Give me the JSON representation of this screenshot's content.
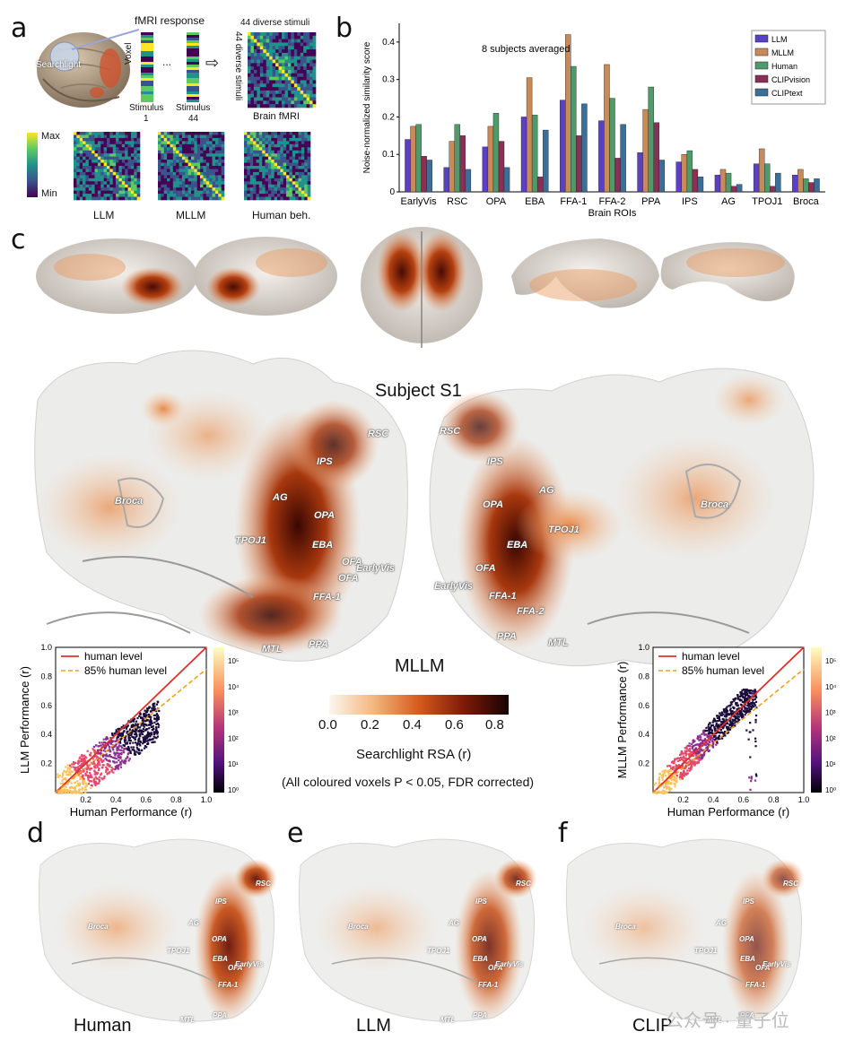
{
  "panels": {
    "a": {
      "letter": "a",
      "searchlight": "Searchlight",
      "fmri_response": "fMRI response",
      "voxel": "Voxel",
      "stimulus1_a": "Stimulus",
      "stimulus1_b": "1",
      "dots": "...",
      "stimulus44_a": "Stimulus",
      "stimulus44_b": "44",
      "arrow": "⇨",
      "diverse_top": "44 diverse stimuli",
      "diverse_side": "44 diverse stimuli",
      "brain_fmri": "Brain fMRI",
      "cbar_max": "Max",
      "cbar_min": "Min",
      "rdm_labels": [
        "LLM",
        "MLLM",
        "Human beh."
      ]
    },
    "b": {
      "letter": "b"
    },
    "c": {
      "letter": "c",
      "subject": "Subject S1",
      "model": "MLLM",
      "left_rois": [
        "RSC",
        "IPS",
        "AG",
        "Broca",
        "OPA",
        "TPOJ1",
        "EBA",
        "OFA",
        "EarlyVis",
        "OFA",
        "FFA-1",
        "PPA",
        "MTL"
      ],
      "right_rois": [
        "RSC",
        "IPS",
        "AG",
        "Broca",
        "OPA",
        "TPOJ1",
        "EBA",
        "OFA",
        "EarlyVis",
        "FFA-1",
        "FFA-2",
        "PPA",
        "MTL"
      ],
      "colorbar": {
        "ticks": [
          "0.0",
          "0.2",
          "0.4",
          "0.6",
          "0.8"
        ],
        "label": "Searchlight RSA (r)",
        "note": "(All coloured voxels P < 0.05, FDR corrected)"
      },
      "scatter_left": {
        "ylabel": "LLM Performance (r)",
        "xlabel": "Human Performance (r)",
        "legend": [
          "human level",
          "85% human level"
        ],
        "ticks": [
          "0.2",
          "0.4",
          "0.6",
          "0.8",
          "1.0"
        ],
        "yticks": [
          "0.2",
          "0.4",
          "0.6",
          "0.8",
          "1.0"
        ],
        "cticks": [
          "10⁵",
          "10⁴",
          "10³",
          "10²",
          "10¹",
          "10⁰"
        ]
      },
      "scatter_right": {
        "ylabel": "MLLM Performance (r)",
        "xlabel": "Human Performance (r)",
        "legend": [
          "human level",
          "85% human level"
        ],
        "ticks": [
          "0.2",
          "0.4",
          "0.6",
          "0.8",
          "1.0"
        ],
        "yticks": [
          "0.2",
          "0.4",
          "0.6",
          "0.8",
          "1.0"
        ],
        "cticks": [
          "10⁵",
          "10⁴",
          "10³",
          "10²",
          "10¹",
          "10⁰"
        ]
      }
    },
    "d": {
      "letter": "d",
      "label": "Human"
    },
    "e": {
      "letter": "e",
      "label": "LLM"
    },
    "f": {
      "letter": "f",
      "label": "CLIP"
    },
    "small_rois": [
      "RSC",
      "IPS",
      "AG",
      "Broca",
      "OPA",
      "TPOJ1",
      "EBA",
      "OFA",
      "EarlyVis",
      "FFA-1",
      "PPA",
      "MTL"
    ],
    "watermark": "公众号 · 量子位"
  },
  "chart_data": {
    "type": "bar",
    "title": "",
    "annotation": "8 subjects averaged",
    "xlabel": "Brain ROIs",
    "ylabel": "Noise-normalized similarity score",
    "ylim": [
      0,
      0.45
    ],
    "yticks": [
      "0",
      "0.1",
      "0.2",
      "0.3",
      "0.4"
    ],
    "categories": [
      "EarlyVis",
      "RSC",
      "OPA",
      "EBA",
      "FFA-1",
      "FFA-2",
      "PPA",
      "IPS",
      "AG",
      "TPOJ1",
      "Broca"
    ],
    "series": [
      {
        "name": "LLM",
        "color": "#5b3fc4",
        "values": [
          0.14,
          0.065,
          0.12,
          0.2,
          0.245,
          0.19,
          0.105,
          0.08,
          0.045,
          0.075,
          0.045
        ]
      },
      {
        "name": "MLLM",
        "color": "#c98a5a",
        "values": [
          0.175,
          0.135,
          0.175,
          0.305,
          0.42,
          0.34,
          0.22,
          0.1,
          0.06,
          0.115,
          0.06
        ]
      },
      {
        "name": "Human",
        "color": "#4e9a6a",
        "values": [
          0.18,
          0.18,
          0.21,
          0.205,
          0.335,
          0.25,
          0.28,
          0.11,
          0.05,
          0.075,
          0.035
        ]
      },
      {
        "name": "CLIPvision",
        "color": "#8a2f55",
        "values": [
          0.095,
          0.15,
          0.135,
          0.04,
          0.15,
          0.09,
          0.185,
          0.06,
          0.015,
          0.015,
          0.025
        ]
      },
      {
        "name": "CLIPtext",
        "color": "#3a6f9a",
        "values": [
          0.085,
          0.06,
          0.065,
          0.165,
          0.235,
          0.18,
          0.085,
          0.04,
          0.02,
          0.05,
          0.035
        ]
      }
    ]
  }
}
